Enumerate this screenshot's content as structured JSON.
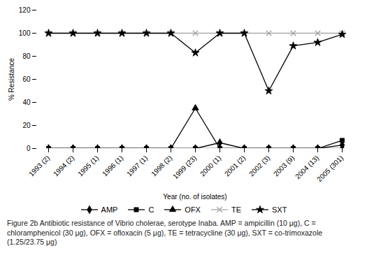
{
  "chart_data": {
    "type": "line",
    "categories": [
      "1993 (2)",
      "1994 (2)",
      "1995 (1)",
      "1996 (1)",
      "1997 (1)",
      "1998 (2)",
      "1999 (23)",
      "2000 (1)",
      "2001 (2)",
      "2002 (3)",
      "2003 (9)",
      "2004 (13)",
      "2005 (301)"
    ],
    "series": [
      {
        "name": "AMP",
        "color": "black",
        "marker": "diamond",
        "values": [
          0,
          0,
          0,
          0,
          0,
          0,
          0,
          5,
          0,
          0,
          0,
          0,
          3
        ]
      },
      {
        "name": "C",
        "color": "black",
        "marker": "square",
        "values": [
          0,
          0,
          0,
          0,
          0,
          0,
          0,
          0,
          0,
          0,
          0,
          0,
          7
        ]
      },
      {
        "name": "OFX",
        "color": "black",
        "marker": "triangle",
        "values": [
          0,
          0,
          0,
          0,
          0,
          0,
          35,
          0,
          0,
          0,
          0,
          0,
          0
        ]
      },
      {
        "name": "TE",
        "color": "#aaaaaa",
        "marker": "x",
        "values": [
          100,
          100,
          100,
          100,
          100,
          100,
          100,
          100,
          100,
          100,
          100,
          100,
          100
        ]
      },
      {
        "name": "SXT",
        "color": "black",
        "marker": "star",
        "values": [
          100,
          100,
          100,
          100,
          100,
          100,
          83,
          100,
          100,
          50,
          89,
          92,
          99
        ]
      }
    ],
    "ylabel": "% Resistance",
    "xlabel": "Year (no. of isolates)",
    "ylim": [
      0,
      120
    ],
    "yticks": [
      0,
      20,
      40,
      60,
      80,
      100,
      120
    ],
    "grid": false,
    "legend": "bottom",
    "caption": "Figure 2b Antibiotic resistance of Vibrio cholerae, serotype Inaba. AMP = ampicillin (10 μg), C = chloramphenicol (30 μg), OFX = ofloxacin (5 μg), TE = tetracycline (30 μg), SXT = co-trimoxazole (1.25/23.75 μg)"
  }
}
